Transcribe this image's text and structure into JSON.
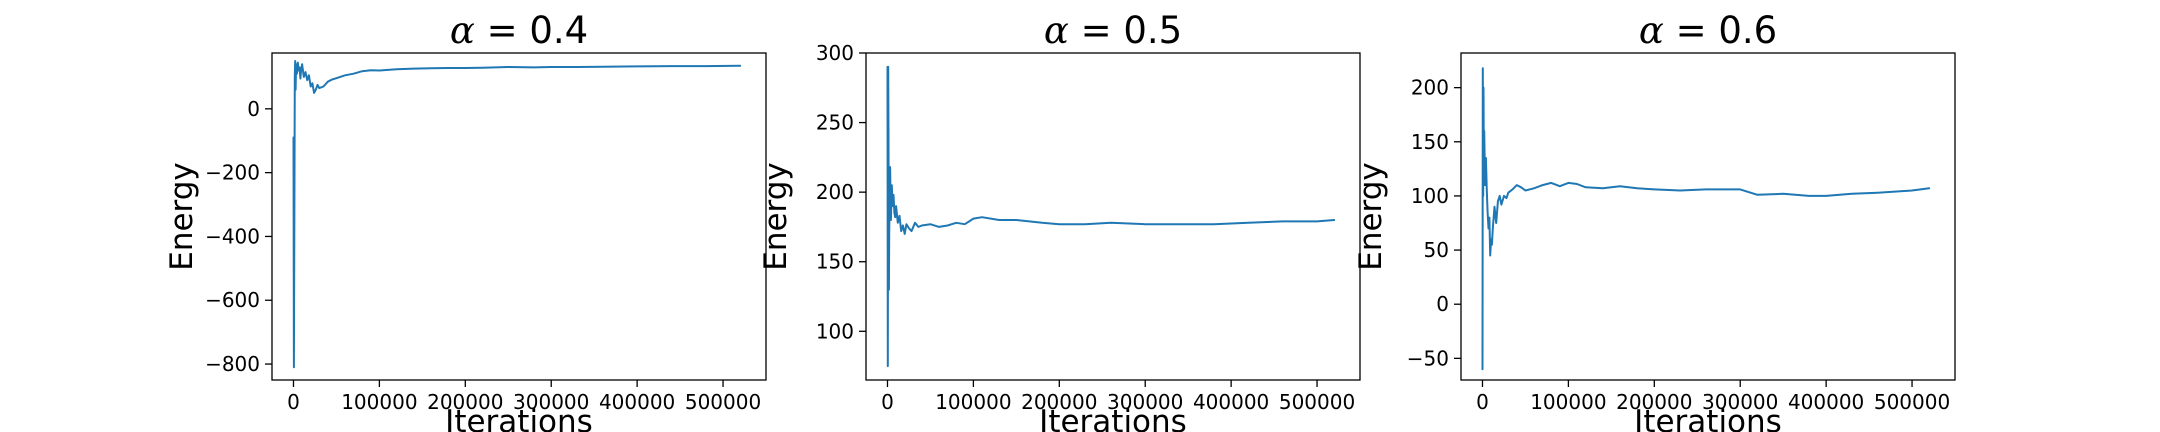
{
  "chart_data": [
    {
      "type": "line",
      "title": "α = 0.4",
      "title_symbol": "α",
      "title_value": "0.4",
      "xlabel": "Iterations",
      "ylabel": "Energy",
      "xlim": [
        -25000,
        550000
      ],
      "ylim": [
        -850,
        175
      ],
      "xticks": [
        0,
        100000,
        200000,
        300000,
        400000,
        500000
      ],
      "xticklabels": [
        "0",
        "100000",
        "200000",
        "300000",
        "400000",
        "500000"
      ],
      "yticks": [
        -800,
        -600,
        -400,
        -200,
        0
      ],
      "yticklabels": [
        "−800",
        "−600",
        "−400",
        "−200",
        "0"
      ],
      "grid": false,
      "color": "#1f77b4",
      "series": [
        {
          "x": [
            0,
            500,
            1000,
            1500,
            2000,
            2500,
            3000,
            4000,
            5000,
            6000,
            7000,
            8000,
            9000,
            10000,
            12000,
            14000,
            16000,
            18000,
            20000,
            22000,
            24000,
            26000,
            28000,
            30000,
            35000,
            40000,
            45000,
            50000,
            60000,
            70000,
            80000,
            90000,
            100000,
            120000,
            140000,
            160000,
            180000,
            200000,
            220000,
            250000,
            280000,
            300000,
            330000,
            360000,
            400000,
            440000,
            480000,
            520000
          ],
          "y": [
            -90,
            -810,
            -400,
            100,
            150,
            60,
            140,
            110,
            145,
            120,
            130,
            95,
            125,
            140,
            100,
            115,
            90,
            105,
            70,
            80,
            50,
            60,
            75,
            65,
            70,
            85,
            92,
            96,
            105,
            110,
            118,
            121,
            120,
            124,
            126,
            127,
            128,
            128,
            129,
            131,
            130,
            131,
            131,
            132,
            133,
            134,
            134,
            135
          ]
        }
      ]
    },
    {
      "type": "line",
      "title": "α = 0.5",
      "title_symbol": "α",
      "title_value": "0.5",
      "xlabel": "Iterations",
      "ylabel": "Energy",
      "xlim": [
        -25000,
        550000
      ],
      "ylim": [
        65,
        300
      ],
      "xticks": [
        0,
        100000,
        200000,
        300000,
        400000,
        500000
      ],
      "xticklabels": [
        "0",
        "100000",
        "200000",
        "300000",
        "400000",
        "500000"
      ],
      "yticks": [
        100,
        150,
        200,
        250,
        300
      ],
      "yticklabels": [
        "100",
        "150",
        "200",
        "250",
        "300"
      ],
      "grid": false,
      "color": "#1f77b4",
      "series": [
        {
          "x": [
            0,
            400,
            800,
            1200,
            1600,
            2000,
            3000,
            4000,
            5000,
            6000,
            7000,
            8000,
            9000,
            10000,
            12000,
            14000,
            16000,
            18000,
            20000,
            22000,
            25000,
            28000,
            32000,
            36000,
            40000,
            50000,
            60000,
            70000,
            80000,
            90000,
            100000,
            110000,
            130000,
            150000,
            180000,
            200000,
            230000,
            260000,
            300000,
            340000,
            380000,
            420000,
            460000,
            500000,
            520000
          ],
          "y": [
            290,
            75,
            290,
            240,
            130,
            170,
            218,
            180,
            205,
            190,
            198,
            185,
            182,
            190,
            178,
            183,
            172,
            176,
            170,
            177,
            174,
            172,
            178,
            175,
            176,
            177,
            175,
            176,
            178,
            177,
            181,
            182,
            180,
            180,
            178,
            177,
            177,
            178,
            177,
            177,
            177,
            178,
            179,
            179,
            180
          ]
        }
      ]
    },
    {
      "type": "line",
      "title": "α = 0.6",
      "title_symbol": "α",
      "title_value": "0.6",
      "xlabel": "Iterations",
      "ylabel": "Energy",
      "xlim": [
        -25000,
        550000
      ],
      "ylim": [
        -70,
        232
      ],
      "xticks": [
        0,
        100000,
        200000,
        300000,
        400000,
        500000
      ],
      "xticklabels": [
        "0",
        "100000",
        "200000",
        "300000",
        "400000",
        "500000"
      ],
      "yticks": [
        -50,
        0,
        50,
        100,
        150,
        200
      ],
      "yticklabels": [
        "−50",
        "0",
        "50",
        "100",
        "150",
        "200"
      ],
      "grid": false,
      "color": "#1f77b4",
      "series": [
        {
          "x": [
            0,
            400,
            800,
            1200,
            1600,
            2000,
            3000,
            4000,
            5000,
            6000,
            7000,
            8000,
            9000,
            10000,
            11000,
            12000,
            14000,
            16000,
            18000,
            20000,
            22000,
            25000,
            28000,
            30000,
            35000,
            40000,
            45000,
            50000,
            60000,
            70000,
            80000,
            90000,
            100000,
            110000,
            120000,
            140000,
            160000,
            180000,
            200000,
            230000,
            260000,
            300000,
            320000,
            350000,
            380000,
            400000,
            430000,
            460000,
            500000,
            520000
          ],
          "y": [
            -60,
            218,
            100,
            200,
            120,
            160,
            110,
            135,
            105,
            85,
            70,
            80,
            45,
            60,
            55,
            70,
            90,
            75,
            95,
            100,
            92,
            100,
            98,
            103,
            106,
            110,
            108,
            105,
            107,
            110,
            112,
            109,
            112,
            111,
            108,
            107,
            109,
            107,
            106,
            105,
            106,
            106,
            101,
            102,
            100,
            100,
            102,
            103,
            105,
            107
          ]
        }
      ]
    }
  ]
}
